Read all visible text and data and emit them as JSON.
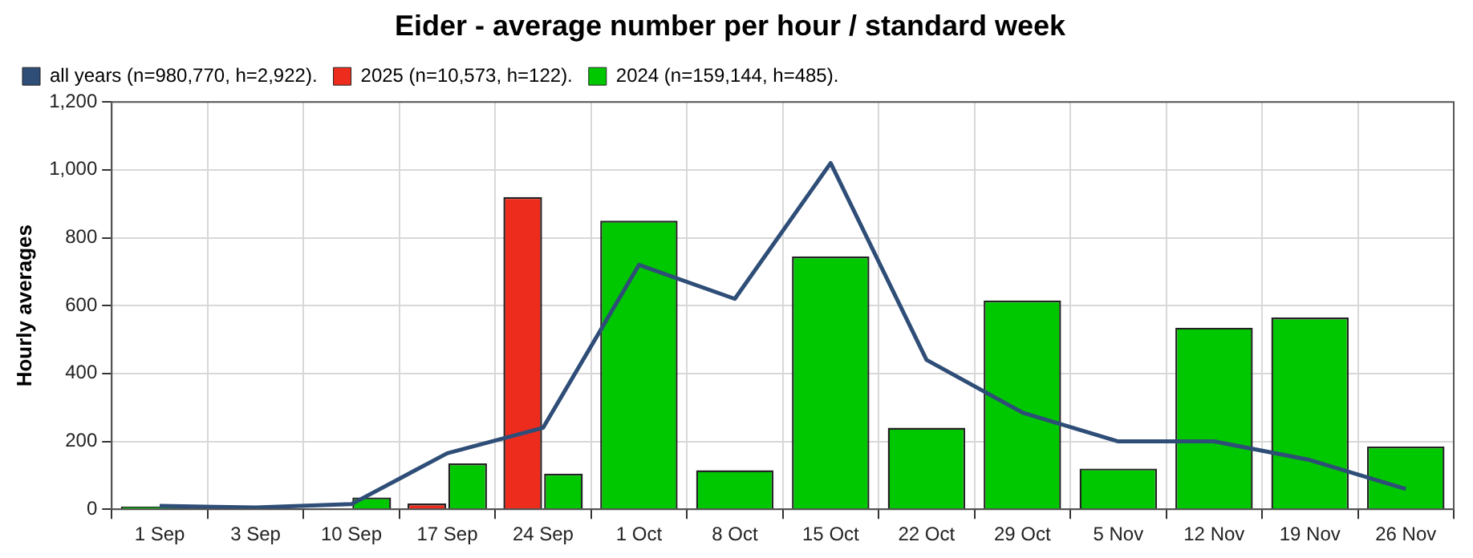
{
  "chart_data": {
    "type": "bar",
    "title": "Eider - average number per hour / standard week",
    "ylabel": "Hourly averages",
    "categories": [
      "1 Sep",
      "3 Sep",
      "10 Sep",
      "17 Sep",
      "24 Sep",
      "1 Oct",
      "8 Oct",
      "15 Oct",
      "22 Oct",
      "29 Oct",
      "5 Nov",
      "12 Nov",
      "19 Nov",
      "26 Nov"
    ],
    "series": [
      {
        "name": "all years (n=980,770, h=2,922).",
        "type": "line",
        "color": "#2e4d77",
        "values": [
          10,
          5,
          15,
          165,
          240,
          720,
          620,
          1020,
          440,
          285,
          200,
          200,
          145,
          60
        ]
      },
      {
        "name": "2025 (n=10,573, h=122).",
        "color": "#ee2c1e",
        "values": [
          null,
          null,
          3,
          17,
          920,
          null,
          null,
          null,
          null,
          null,
          null,
          null,
          null,
          null
        ]
      },
      {
        "name": "2024 (n=159,144, h=485).",
        "color": "#00c800",
        "values": [
          8,
          3,
          35,
          135,
          105,
          850,
          115,
          745,
          240,
          615,
          120,
          535,
          565,
          185
        ]
      }
    ],
    "ylim": [
      0,
      1200
    ],
    "yticks": [
      0,
      {
        "value": 200,
        "label": "200"
      },
      {
        "value": 400,
        "label": "400"
      },
      {
        "value": 600,
        "label": "600"
      },
      {
        "value": 800,
        "label": "800"
      },
      {
        "value": 1000,
        "label": "1,000"
      },
      {
        "value": 1200,
        "label": "1,200"
      }
    ],
    "grid": true,
    "legend": "top left",
    "marker": "none",
    "line_style": "solid"
  }
}
